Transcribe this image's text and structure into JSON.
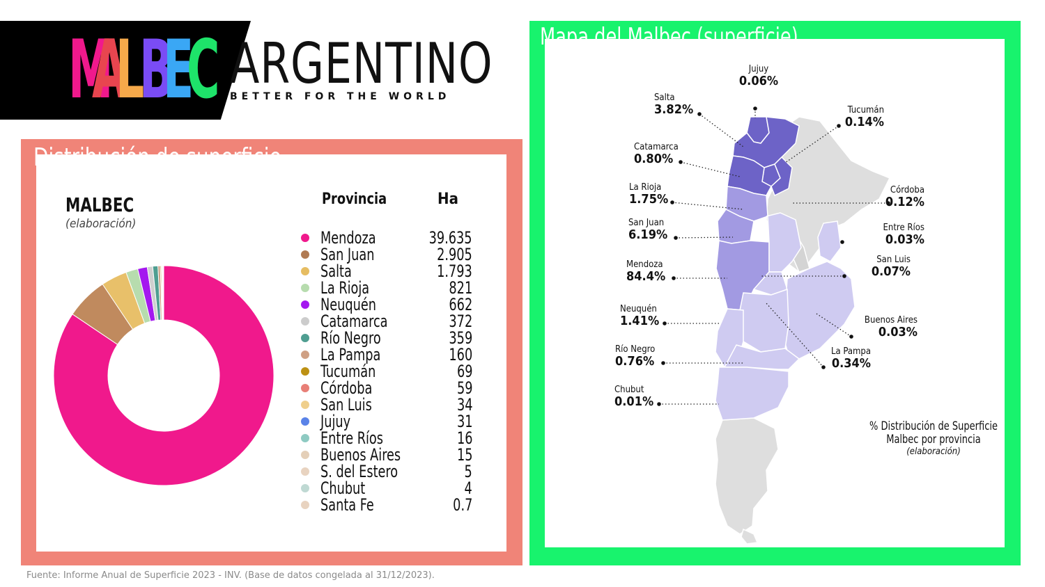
{
  "logo": {
    "malbec_letters": [
      {
        "ch": "M",
        "color": "#f0198c"
      },
      {
        "ch": "A",
        "color": "#e8454f"
      },
      {
        "ch": "L",
        "color": "#f6a94a"
      },
      {
        "ch": "B",
        "color": "#7a4cf5"
      },
      {
        "ch": "E",
        "color": "#3aa7f5"
      },
      {
        "ch": "C",
        "color": "#1ee36a"
      }
    ],
    "word": "ARGENTINO",
    "tagline": "BETTER FOR THE WORLD"
  },
  "left_panel": {
    "title": "Distribución de superficie",
    "frame_color": "#f08478",
    "chart_heading": "MALBEC",
    "chart_subheading": "(elaboración)",
    "col_province": "Provincia",
    "col_ha": "Ha"
  },
  "chart_data": {
    "type": "pie",
    "donut": true,
    "categories": [
      "Mendoza",
      "San Juan",
      "Salta",
      "La Rioja",
      "Neuquén",
      "Catamarca",
      "Río Negro",
      "La Pampa",
      "Tucumán",
      "Córdoba",
      "San Luis",
      "Jujuy",
      "Entre Ríos",
      "Buenos Aires",
      "S. del Estero",
      "Chubut",
      "Santa Fe"
    ],
    "values": [
      39635,
      2905,
      1793,
      821,
      662,
      372,
      359,
      160,
      69,
      59,
      34,
      31,
      16,
      15,
      5,
      4,
      0.7
    ],
    "value_labels": [
      "39.635",
      "2.905",
      "1.793",
      "821",
      "662",
      "372",
      "359",
      "160",
      "69",
      "59",
      "34",
      "31",
      "16",
      "15",
      "5",
      "4",
      "0.7"
    ],
    "colors": [
      "#f0198c",
      "#c08a5e",
      "#e8c06a",
      "#b7dcae",
      "#a418ef",
      "#cfcfcf",
      "#4f9e91",
      "#cfa084",
      "#bd9114",
      "#e87f77",
      "#efcf8c",
      "#4f7fe8",
      "#8ecac2",
      "#e4cfb8",
      "#888888",
      "#888888",
      "#888888"
    ],
    "legend_dot_colors": [
      "#f0198c",
      "#b07a52",
      "#e6bd62",
      "#b7dcae",
      "#a418ef",
      "#cccccc",
      "#4f9e91",
      "#cfa084",
      "#bd9114",
      "#e87f77",
      "#efcf8c",
      "#5a83e8",
      "#8ecac2",
      "#e4cfb8",
      "#e8d3c0",
      "#bfd9d3",
      "#e8d3c0"
    ]
  },
  "right_panel": {
    "title_bold": "Mapa del Malbec",
    "title_light": "(superficie)",
    "frame_color": "#18f36d",
    "note_line1": "% Distribución de Superficie",
    "note_line2": "Malbec por provincia",
    "note_line3": "(elaboración)",
    "labels": [
      {
        "name": "Jujuy",
        "pct": "0.06%"
      },
      {
        "name": "Salta",
        "pct": "3.82%"
      },
      {
        "name": "Tucumán",
        "pct": "0.14%"
      },
      {
        "name": "Catamarca",
        "pct": "0.80%"
      },
      {
        "name": "La Rioja",
        "pct": "1.75%"
      },
      {
        "name": "Córdoba",
        "pct": "0.12%"
      },
      {
        "name": "San Juan",
        "pct": "6.19%"
      },
      {
        "name": "Entre Ríos",
        "pct": "0.03%"
      },
      {
        "name": "San Luis",
        "pct": "0.07%"
      },
      {
        "name": "Mendoza",
        "pct": "84.4%"
      },
      {
        "name": "Neuquén",
        "pct": "1.41%"
      },
      {
        "name": "Buenos Aires",
        "pct": "0.03%"
      },
      {
        "name": "Río Negro",
        "pct": "0.76%"
      },
      {
        "name": "La Pampa",
        "pct": "0.34%"
      },
      {
        "name": "Chubut",
        "pct": "0.01%"
      }
    ]
  },
  "footer": "Fuente: Informe Anual de Superficie 2023 - INV. (Base de datos congelada al 31/12/2023)."
}
